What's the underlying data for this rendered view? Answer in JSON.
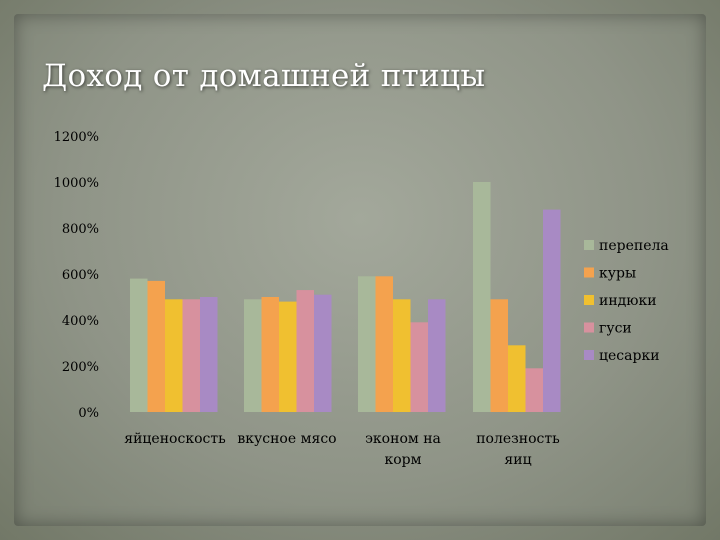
{
  "chart_data": {
    "type": "bar",
    "title": "Доход от домашней птицы",
    "xlabel": "",
    "ylabel": "",
    "ylim": [
      0,
      1200
    ],
    "yticks": [
      0,
      200,
      400,
      600,
      800,
      1000,
      1200
    ],
    "ytick_labels": [
      "0%",
      "200%",
      "400%",
      "600%",
      "800%",
      "1000%",
      "1200%"
    ],
    "categories": [
      "яйценоскость",
      "вкусное мясо",
      "эконом на корм",
      "полезность яиц"
    ],
    "series": [
      {
        "name": "перепела",
        "color": "#a8b89a",
        "values": [
          580,
          490,
          590,
          1000
        ]
      },
      {
        "name": "куры",
        "color": "#f4a24e",
        "values": [
          570,
          500,
          590,
          490
        ]
      },
      {
        "name": "индюки",
        "color": "#f0c030",
        "values": [
          490,
          480,
          490,
          290
        ]
      },
      {
        "name": "гуси",
        "color": "#d7919e",
        "values": [
          490,
          530,
          390,
          190
        ]
      },
      {
        "name": "цесарки",
        "color": "#a88ac4",
        "values": [
          500,
          510,
          490,
          880
        ]
      }
    ],
    "legend_position": "right",
    "grid": false
  }
}
